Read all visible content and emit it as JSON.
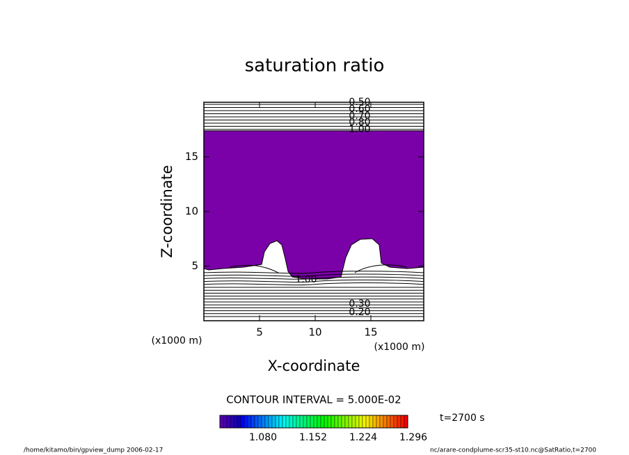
{
  "chart_data": {
    "type": "contour",
    "title": "saturation ratio",
    "x_label": "X-coordinate",
    "y_label": "Z-coordinate",
    "x_unit": "(x1000 m)",
    "y_unit": "(x1000 m)",
    "xlim": [
      0,
      19.75
    ],
    "ylim": [
      0,
      20
    ],
    "xticks": [
      5,
      10,
      15
    ],
    "yticks": [
      5,
      10,
      15
    ],
    "fill_color": "#7a00a8",
    "contour_labels": [
      {
        "value": 0.5,
        "label": "0.50"
      },
      {
        "value": 0.6,
        "label": "0.60"
      },
      {
        "value": 0.7,
        "label": "0.70"
      },
      {
        "value": 0.8,
        "label": "0.80"
      },
      {
        "value": 1.0,
        "label": "1.00"
      },
      {
        "value": 1.0,
        "label": "1.00"
      },
      {
        "value": 0.3,
        "label": "0.30"
      },
      {
        "value": 0.2,
        "label": "0.20"
      }
    ],
    "contour_interval": "CONTOUR INTERVAL = 5.000E-02",
    "colorbar": {
      "lim": [
        1.018,
        1.288
      ],
      "ticks": [
        {
          "value": 1.08,
          "label": "1.080"
        },
        {
          "value": 1.152,
          "label": "1.152"
        },
        {
          "value": 1.224,
          "label": "1.224"
        },
        {
          "value": 1.296,
          "label": "1.296"
        }
      ]
    },
    "time": "t=2700 s"
  },
  "footer": {
    "left": "/home/kitamo/bin/gpview_dump  2006-02-17",
    "right": "nc/arare-condplume-scr35-st10.nc@SatRatio,t=2700"
  }
}
